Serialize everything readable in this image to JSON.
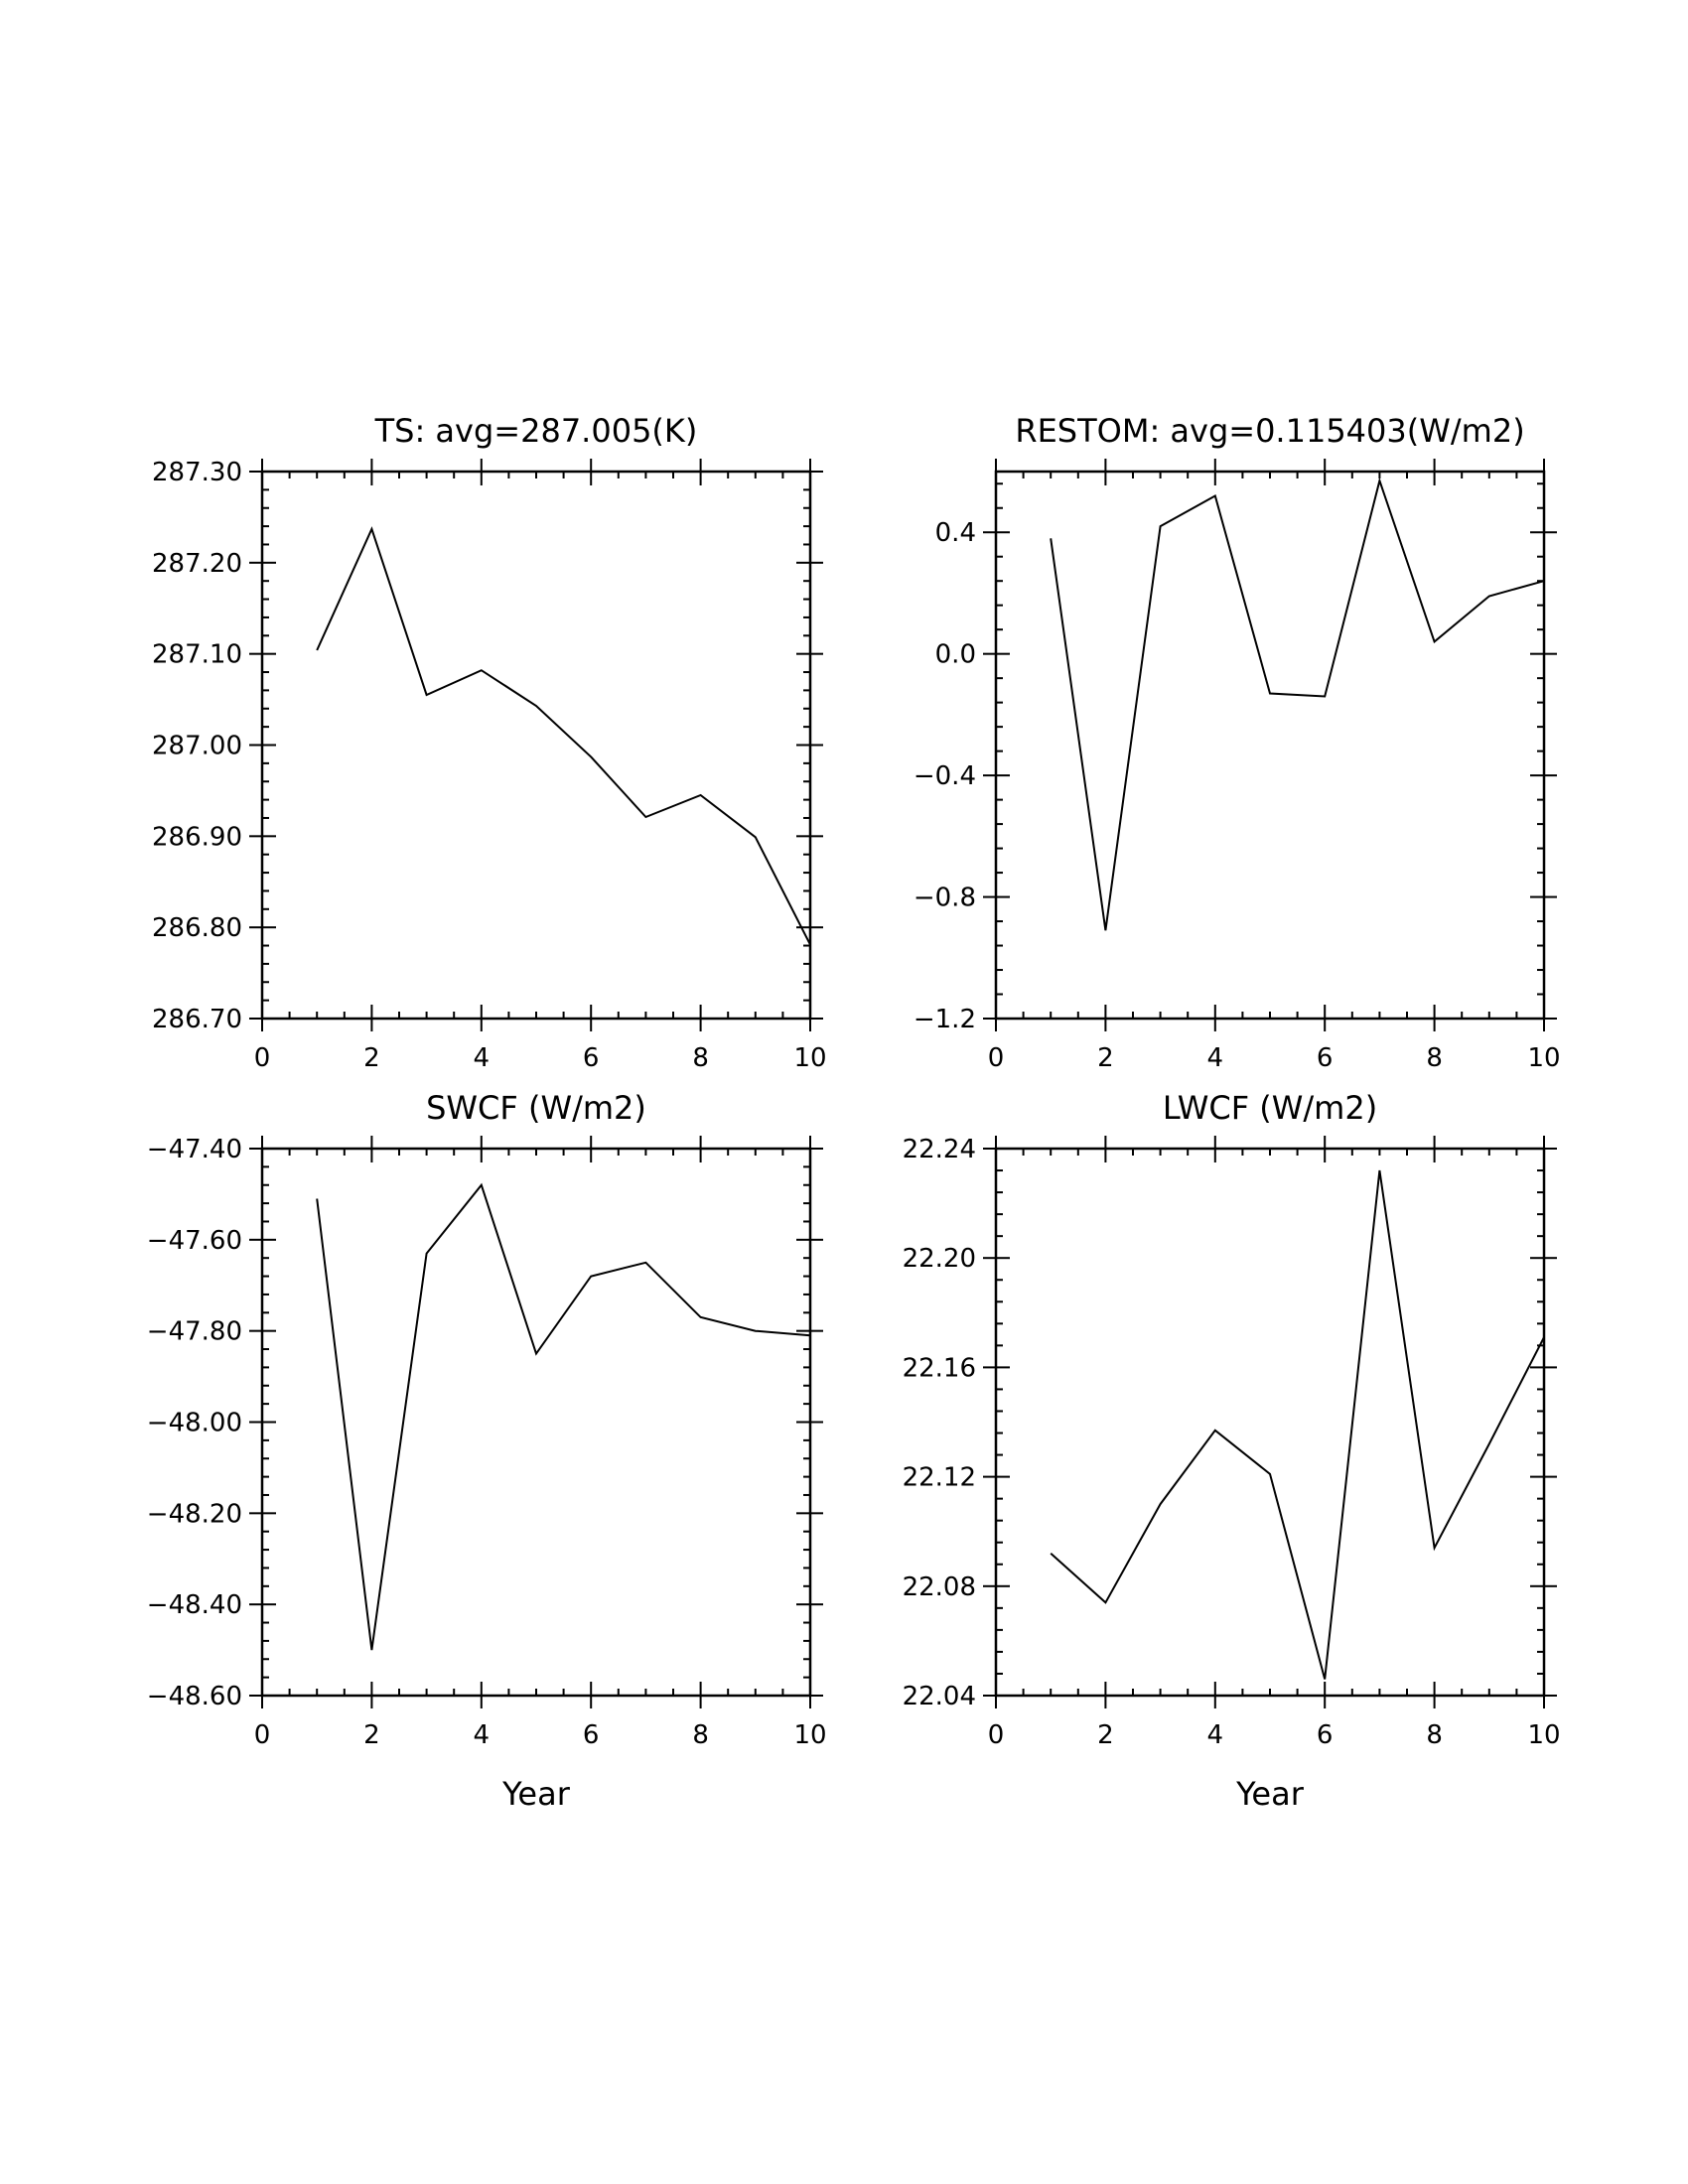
{
  "chart_data": [
    {
      "type": "line",
      "title": "TS: avg=287.005(K)",
      "xlabel": "",
      "ylabel": "",
      "xlim": [
        0,
        10
      ],
      "ylim": [
        286.7,
        287.3
      ],
      "x_ticks": [
        "0",
        "2",
        "4",
        "6",
        "8",
        "10"
      ],
      "y_ticks": [
        "286.70",
        "286.80",
        "286.90",
        "287.00",
        "287.10",
        "287.20",
        "287.30"
      ],
      "x": [
        1,
        2,
        3,
        4,
        5,
        6,
        7,
        8,
        9,
        10
      ],
      "values": [
        287.104,
        287.237,
        287.055,
        287.082,
        287.043,
        286.987,
        286.921,
        286.945,
        286.899,
        286.781
      ],
      "grid": false,
      "legend": "none"
    },
    {
      "type": "line",
      "title": "RESTOM: avg=0.115403(W/m2)",
      "xlabel": "",
      "ylabel": "",
      "xlim": [
        0,
        10
      ],
      "ylim": [
        -1.2,
        0.6
      ],
      "x_ticks": [
        "0",
        "2",
        "4",
        "6",
        "8",
        "10"
      ],
      "y_ticks": [
        "−1.2",
        "−0.8",
        "−0.4",
        "0.0",
        "0.4"
      ],
      "y_tick_values": [
        -1.2,
        -0.8,
        -0.4,
        0.0,
        0.4
      ],
      "x": [
        1,
        2,
        3,
        4,
        5,
        6,
        7,
        8,
        9,
        10
      ],
      "values": [
        0.38,
        -0.91,
        0.42,
        0.52,
        -0.13,
        -0.14,
        0.57,
        0.04,
        0.19,
        0.24
      ],
      "grid": false,
      "legend": "none"
    },
    {
      "type": "line",
      "title": "SWCF (W/m2)",
      "xlabel": "Year",
      "ylabel": "",
      "xlim": [
        0,
        10
      ],
      "ylim": [
        -48.6,
        -47.4
      ],
      "x_ticks": [
        "0",
        "2",
        "4",
        "6",
        "8",
        "10"
      ],
      "y_ticks": [
        "−48.60",
        "−48.40",
        "−48.20",
        "−48.00",
        "−47.80",
        "−47.60",
        "−47.40"
      ],
      "x": [
        1,
        2,
        3,
        4,
        5,
        6,
        7,
        8,
        9,
        10
      ],
      "values": [
        -47.51,
        -48.5,
        -47.63,
        -47.48,
        -47.85,
        -47.68,
        -47.65,
        -47.77,
        -47.8,
        -47.81
      ],
      "grid": false,
      "legend": "none"
    },
    {
      "type": "line",
      "title": "LWCF (W/m2)",
      "xlabel": "Year",
      "ylabel": "",
      "xlim": [
        0,
        10
      ],
      "ylim": [
        22.04,
        22.24
      ],
      "x_ticks": [
        "0",
        "2",
        "4",
        "6",
        "8",
        "10"
      ],
      "y_ticks": [
        "22.04",
        "22.08",
        "22.12",
        "22.16",
        "22.20",
        "22.24"
      ],
      "x": [
        1,
        2,
        3,
        4,
        5,
        6,
        7,
        8,
        9,
        10
      ],
      "values": [
        22.092,
        22.074,
        22.11,
        22.137,
        22.121,
        22.046,
        22.232,
        22.094,
        22.132,
        22.171
      ],
      "grid": false,
      "legend": "none"
    }
  ]
}
